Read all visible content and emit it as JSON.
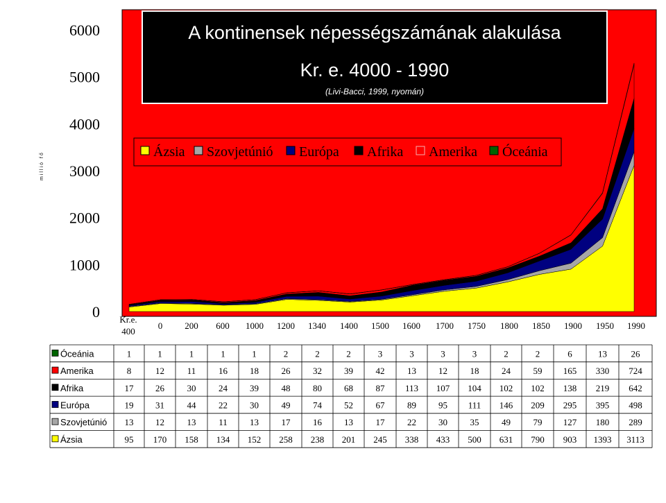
{
  "chart_data": {
    "type": "area",
    "stacked": true,
    "title": "A kontinensek népességszámának alakulása",
    "subtitle": "Kr. e. 4000 - 1990",
    "source_note": "(Livi-Bacci, 1999, nyomán)",
    "ylabel": "millió fő",
    "ylim": [
      0,
      6000
    ],
    "yticks": [
      "0",
      "1000",
      "2000",
      "3000",
      "4000",
      "5000",
      "6000"
    ],
    "categories": [
      "Kr.e. 400",
      "0",
      "200",
      "600",
      "1000",
      "1200",
      "1340",
      "1400",
      "1500",
      "1600",
      "1700",
      "1750",
      "1800",
      "1850",
      "1900",
      "1950",
      "1990"
    ],
    "category_lines": [
      [
        "Kr.e.",
        "400"
      ],
      [
        "0"
      ],
      [
        "200"
      ],
      [
        "600"
      ],
      [
        "1000"
      ],
      [
        "1200"
      ],
      [
        "1340"
      ],
      [
        "1400"
      ],
      [
        "1500"
      ],
      [
        "1600"
      ],
      [
        "1700"
      ],
      [
        "1750"
      ],
      [
        "1800"
      ],
      [
        "1850"
      ],
      [
        "1900"
      ],
      [
        "1950"
      ],
      [
        "1990"
      ]
    ],
    "legend": [
      "Ázsia",
      "Szovjetúnió",
      "Európa",
      "Afrika",
      "Amerika",
      "Óceánia"
    ],
    "series": [
      {
        "name": "Ázsia",
        "color": "#ffff00",
        "values": [
          95,
          170,
          158,
          134,
          152,
          258,
          238,
          201,
          245,
          338,
          433,
          500,
          631,
          790,
          903,
          1393,
          3113
        ]
      },
      {
        "name": "Szovjetúnió",
        "color": "#a6a6a6",
        "values": [
          13,
          12,
          13,
          11,
          13,
          17,
          16,
          13,
          17,
          22,
          30,
          35,
          49,
          79,
          127,
          180,
          289
        ]
      },
      {
        "name": "Európa",
        "color": "#000080",
        "values": [
          19,
          31,
          44,
          22,
          30,
          49,
          74,
          52,
          67,
          89,
          95,
          111,
          146,
          209,
          295,
          395,
          498
        ]
      },
      {
        "name": "Afrika",
        "color": "#000000",
        "values": [
          17,
          26,
          30,
          24,
          39,
          48,
          80,
          68,
          87,
          113,
          107,
          104,
          102,
          102,
          138,
          219,
          642
        ]
      },
      {
        "name": "Amerika",
        "color": "#ff0000",
        "values": [
          8,
          12,
          11,
          16,
          18,
          26,
          32,
          39,
          42,
          13,
          12,
          18,
          24,
          59,
          165,
          330,
          724
        ]
      },
      {
        "name": "Óceánia",
        "color": "#006400",
        "values": [
          1,
          1,
          1,
          1,
          1,
          2,
          2,
          2,
          3,
          3,
          3,
          3,
          2,
          2,
          6,
          13,
          26
        ]
      }
    ],
    "table_order": [
      "Óceánia",
      "Amerika",
      "Afrika",
      "Európa",
      "Szovjetúnió",
      "Ázsia"
    ],
    "colors": {
      "plot_background": "#ff0000",
      "title_box": "#000000",
      "legend_box": "#ff0000"
    }
  }
}
